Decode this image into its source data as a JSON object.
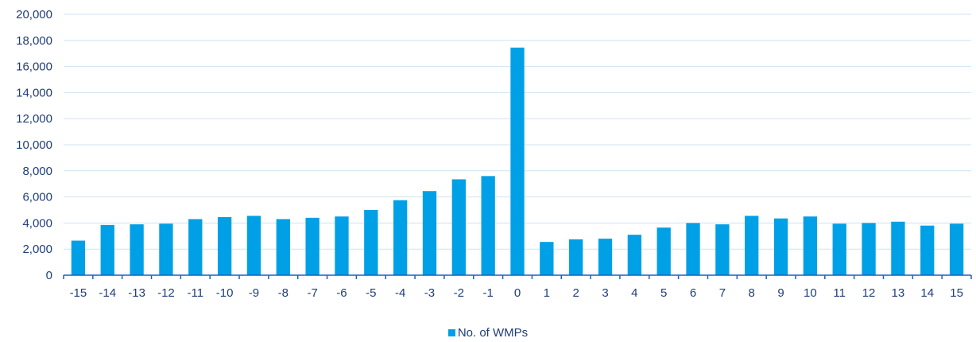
{
  "chart_data": {
    "type": "bar",
    "categories": [
      "-15",
      "-14",
      "-13",
      "-12",
      "-11",
      "-10",
      "-9",
      "-8",
      "-7",
      "-6",
      "-5",
      "-4",
      "-3",
      "-2",
      "-1",
      "0",
      "1",
      "2",
      "3",
      "4",
      "5",
      "6",
      "7",
      "8",
      "9",
      "10",
      "11",
      "12",
      "13",
      "14",
      "15"
    ],
    "series": [
      {
        "name": "No. of WMPs",
        "values": [
          2650,
          3850,
          3900,
          3950,
          4300,
          4450,
          4550,
          4300,
          4400,
          4500,
          5000,
          5750,
          6450,
          7350,
          7600,
          17450,
          2550,
          2750,
          2800,
          3100,
          3650,
          4000,
          3900,
          4550,
          4350,
          4500,
          3950,
          4000,
          4100,
          3800,
          3950
        ]
      }
    ],
    "yticks": [
      "0",
      "2,000",
      "4,000",
      "6,000",
      "8,000",
      "10,000",
      "12,000",
      "14,000",
      "16,000",
      "18,000",
      "20,000"
    ],
    "ylim": [
      0,
      20000
    ],
    "grid": true,
    "legend_position": "bottom",
    "colors": {
      "bar": "#00a0e6",
      "grid": "#cfe3f3",
      "axis": "#1f5fbf",
      "text": "#1f3d7a"
    }
  }
}
